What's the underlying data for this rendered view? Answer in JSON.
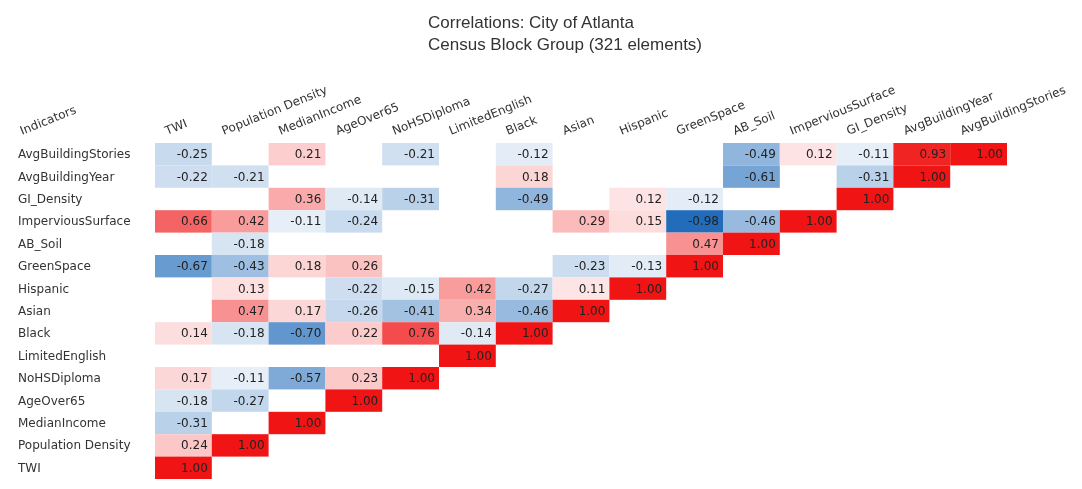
{
  "chart_data": {
    "type": "heatmap",
    "title": "Correlations: City of Atlanta",
    "subtitle": "Census Block Group (321 elements)",
    "ylabel": "Indicators",
    "categories": [
      "TWI",
      "Population Density",
      "MedianIncome",
      "AgeOver65",
      "NoHSDiploma",
      "LimitedEnglish",
      "Black",
      "Asian",
      "Hispanic",
      "GreenSpace",
      "AB_Soil",
      "ImperviousSurface",
      "GI_Density",
      "AvgBuildingYear",
      "AvgBuildingStories"
    ],
    "y_categories": [
      "AvgBuildingStories",
      "AvgBuildingYear",
      "GI_Density",
      "ImperviousSurface",
      "AB_Soil",
      "GreenSpace",
      "Hispanic",
      "Asian",
      "Black",
      "LimitedEnglish",
      "NoHSDiploma",
      "AgeOver65",
      "MedianIncome",
      "Population Density",
      "TWI"
    ],
    "cells": [
      [
        -0.25,
        null,
        0.21,
        null,
        -0.21,
        null,
        -0.12,
        null,
        null,
        null,
        -0.49,
        0.12,
        -0.11,
        0.93,
        1.0
      ],
      [
        -0.22,
        -0.21,
        null,
        null,
        null,
        null,
        0.18,
        null,
        null,
        null,
        -0.61,
        null,
        -0.31,
        1.0,
        null
      ],
      [
        null,
        null,
        0.36,
        -0.14,
        -0.31,
        null,
        -0.49,
        null,
        0.12,
        -0.12,
        null,
        null,
        1.0,
        null,
        null
      ],
      [
        0.66,
        0.42,
        -0.11,
        -0.24,
        null,
        null,
        null,
        0.29,
        0.15,
        -0.98,
        -0.46,
        1.0,
        null,
        null,
        null
      ],
      [
        null,
        -0.18,
        null,
        null,
        null,
        null,
        null,
        null,
        null,
        0.47,
        1.0,
        null,
        null,
        null,
        null
      ],
      [
        -0.67,
        -0.43,
        0.18,
        0.26,
        null,
        null,
        null,
        -0.23,
        -0.13,
        1.0,
        null,
        null,
        null,
        null,
        null
      ],
      [
        null,
        0.13,
        null,
        -0.22,
        -0.15,
        0.42,
        -0.27,
        0.11,
        1.0,
        null,
        null,
        null,
        null,
        null,
        null
      ],
      [
        null,
        0.47,
        0.17,
        -0.26,
        -0.41,
        0.34,
        -0.46,
        1.0,
        null,
        null,
        null,
        null,
        null,
        null,
        null
      ],
      [
        0.14,
        -0.18,
        -0.7,
        0.22,
        0.76,
        -0.14,
        1.0,
        null,
        null,
        null,
        null,
        null,
        null,
        null,
        null
      ],
      [
        null,
        null,
        null,
        null,
        null,
        1.0,
        null,
        null,
        null,
        null,
        null,
        null,
        null,
        null,
        null
      ],
      [
        0.17,
        -0.11,
        -0.57,
        0.23,
        1.0,
        null,
        null,
        null,
        null,
        null,
        null,
        null,
        null,
        null,
        null
      ],
      [
        -0.18,
        -0.27,
        null,
        1.0,
        null,
        null,
        null,
        null,
        null,
        null,
        null,
        null,
        null,
        null,
        null
      ],
      [
        -0.31,
        null,
        1.0,
        null,
        null,
        null,
        null,
        null,
        null,
        null,
        null,
        null,
        null,
        null,
        null
      ],
      [
        0.24,
        1.0,
        null,
        null,
        null,
        null,
        null,
        null,
        null,
        null,
        null,
        null,
        null,
        null,
        null
      ],
      [
        1.0,
        null,
        null,
        null,
        null,
        null,
        null,
        null,
        null,
        null,
        null,
        null,
        null,
        null,
        null
      ]
    ],
    "cell_labels": [
      [
        "-0.25",
        null,
        "0.21",
        null,
        "-0.21",
        null,
        "-0.12",
        null,
        null,
        null,
        "-0.49",
        "0.12",
        "-0.11",
        "0.93",
        "1.00"
      ],
      [
        "-0.22",
        "-0.21",
        null,
        null,
        null,
        null,
        "0.18",
        null,
        null,
        null,
        "-0.61",
        null,
        "-0.31",
        "1.00",
        null
      ],
      [
        null,
        null,
        "0.36",
        "-0.14",
        "-0.31",
        null,
        "-0.49",
        null,
        "0.12",
        "-0.12",
        null,
        null,
        "1.00",
        null,
        null
      ],
      [
        "0.66",
        "0.42",
        "-0.11",
        "-0.24",
        null,
        null,
        null,
        "0.29",
        "0.15",
        "-0.98",
        "-0.46",
        "1.00",
        null,
        null,
        null
      ],
      [
        null,
        "-0.18",
        null,
        null,
        null,
        null,
        null,
        null,
        null,
        "0.47",
        "1.00",
        null,
        null,
        null,
        null
      ],
      [
        "-0.67",
        "-0.43",
        "0.18",
        "0.26",
        null,
        null,
        null,
        "-0.23",
        "-0.13",
        "1.00",
        null,
        null,
        null,
        null,
        null
      ],
      [
        null,
        "0.13",
        null,
        "-0.22",
        "-0.15",
        "0.42",
        "-0.27",
        "0.11",
        "1.00",
        null,
        null,
        null,
        null,
        null,
        null
      ],
      [
        null,
        "0.47",
        "0.17",
        "-0.26",
        "-0.41",
        "0.34",
        "-0.46",
        "1.00",
        null,
        null,
        null,
        null,
        null,
        null,
        null
      ],
      [
        "0.14",
        "-0.18",
        "-0.70",
        "0.22",
        "0.76",
        "-0.14",
        "1.00",
        null,
        null,
        null,
        null,
        null,
        null,
        null,
        null
      ],
      [
        null,
        null,
        null,
        null,
        null,
        "1.00",
        null,
        null,
        null,
        null,
        null,
        null,
        null,
        null,
        null
      ],
      [
        "0.17",
        "-0.11",
        "-0.57",
        "0.23",
        "1.00",
        null,
        null,
        null,
        null,
        null,
        null,
        null,
        null,
        null,
        null
      ],
      [
        "-0.18",
        "-0.27",
        null,
        "1.00",
        null,
        null,
        null,
        null,
        null,
        null,
        null,
        null,
        null,
        null,
        null
      ],
      [
        "-0.31",
        null,
        "1.00",
        null,
        null,
        null,
        null,
        null,
        null,
        null,
        null,
        null,
        null,
        null,
        null
      ],
      [
        "0.24",
        "1.00",
        null,
        null,
        null,
        null,
        null,
        null,
        null,
        null,
        null,
        null,
        null,
        null,
        null
      ],
      [
        "1.00",
        null,
        null,
        null,
        null,
        null,
        null,
        null,
        null,
        null,
        null,
        null,
        null,
        null,
        null
      ]
    ]
  }
}
